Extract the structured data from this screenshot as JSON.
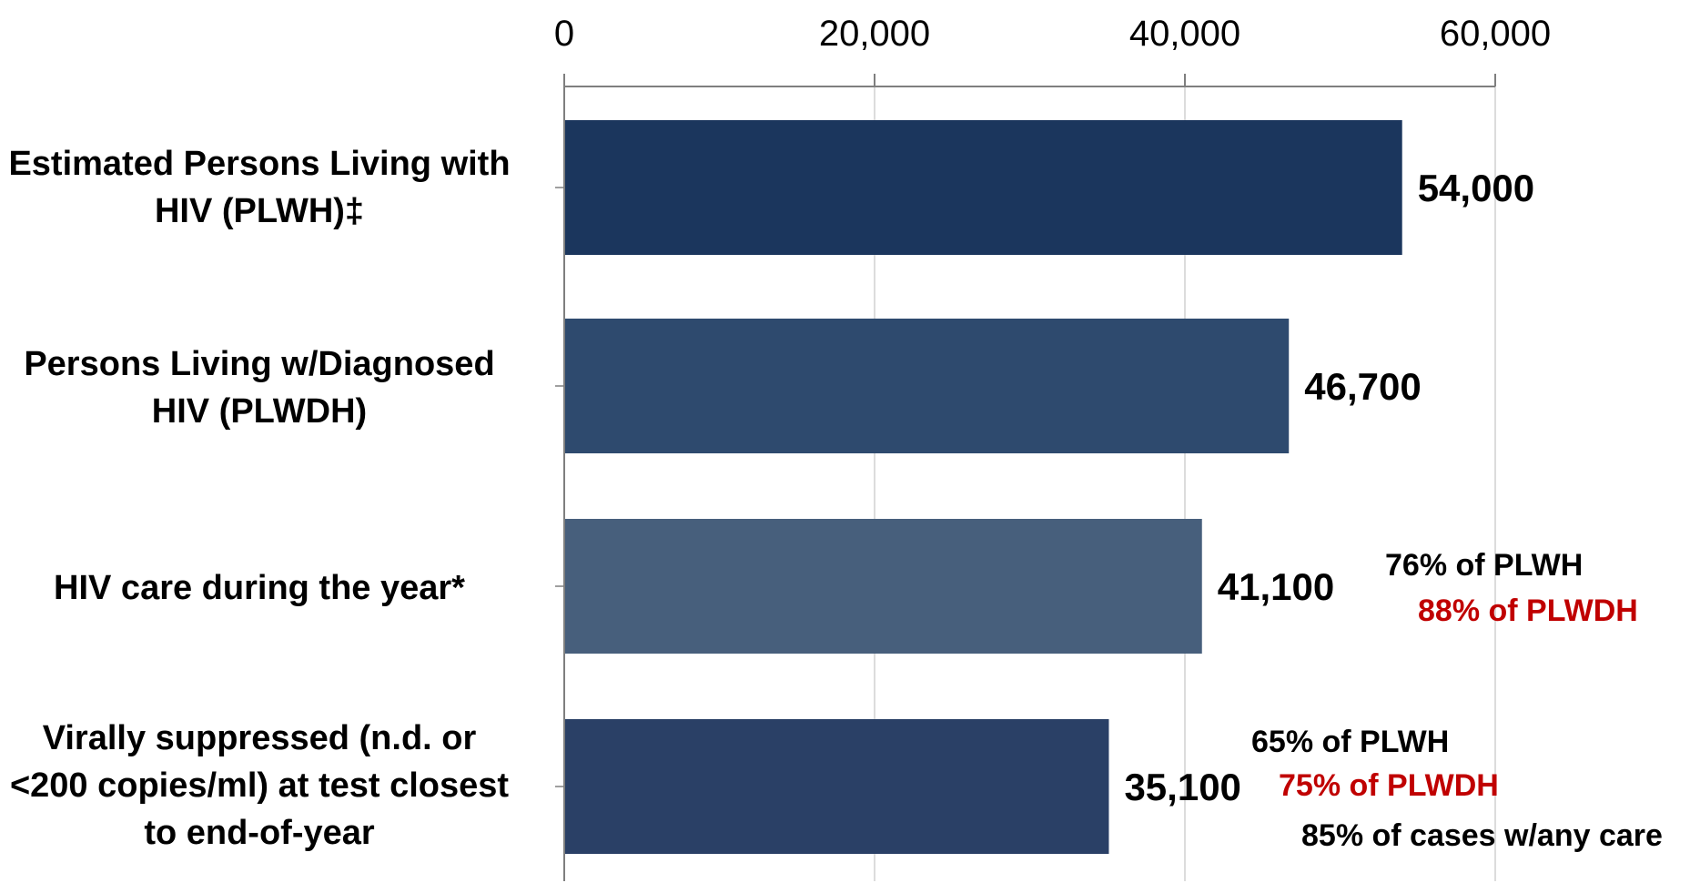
{
  "chart_data": {
    "type": "bar",
    "orientation": "horizontal",
    "title": "",
    "xlabel": "",
    "ylabel": "",
    "xlim": [
      0,
      60000
    ],
    "ticks": [
      0,
      20000,
      40000,
      60000
    ],
    "tick_labels": [
      "0",
      "20,000",
      "40,000",
      "60,000"
    ],
    "grid": true,
    "axis_position": "top",
    "categories": [
      "Estimated Persons Living with\nHIV (PLWH)‡",
      "Persons Living w/Diagnosed\nHIV (PLWDH)",
      "HIV care during the year*",
      "Virally suppressed (n.d. or\n<200 copies/ml) at test closest\nto end-of-year"
    ],
    "values": [
      54000,
      46700,
      41100,
      35100
    ],
    "value_labels": [
      "54,000",
      "46,700",
      "41,100",
      "35,100"
    ],
    "bar_colors": [
      "#1b365d",
      "#2e4a6e",
      "#475f7c",
      "#2a4066"
    ],
    "annotations": [
      {
        "text": "76% of PLWH",
        "color": "#000000",
        "bar": 2
      },
      {
        "text": "88% of PLWDH",
        "color": "#c00000",
        "bar": 2
      },
      {
        "text": "65% of PLWH",
        "color": "#000000",
        "bar": 3
      },
      {
        "text": "75% of PLWDH",
        "color": "#c00000",
        "bar": 3
      },
      {
        "text": "85% of cases w/any care",
        "color": "#000000",
        "bar": 3
      }
    ]
  }
}
